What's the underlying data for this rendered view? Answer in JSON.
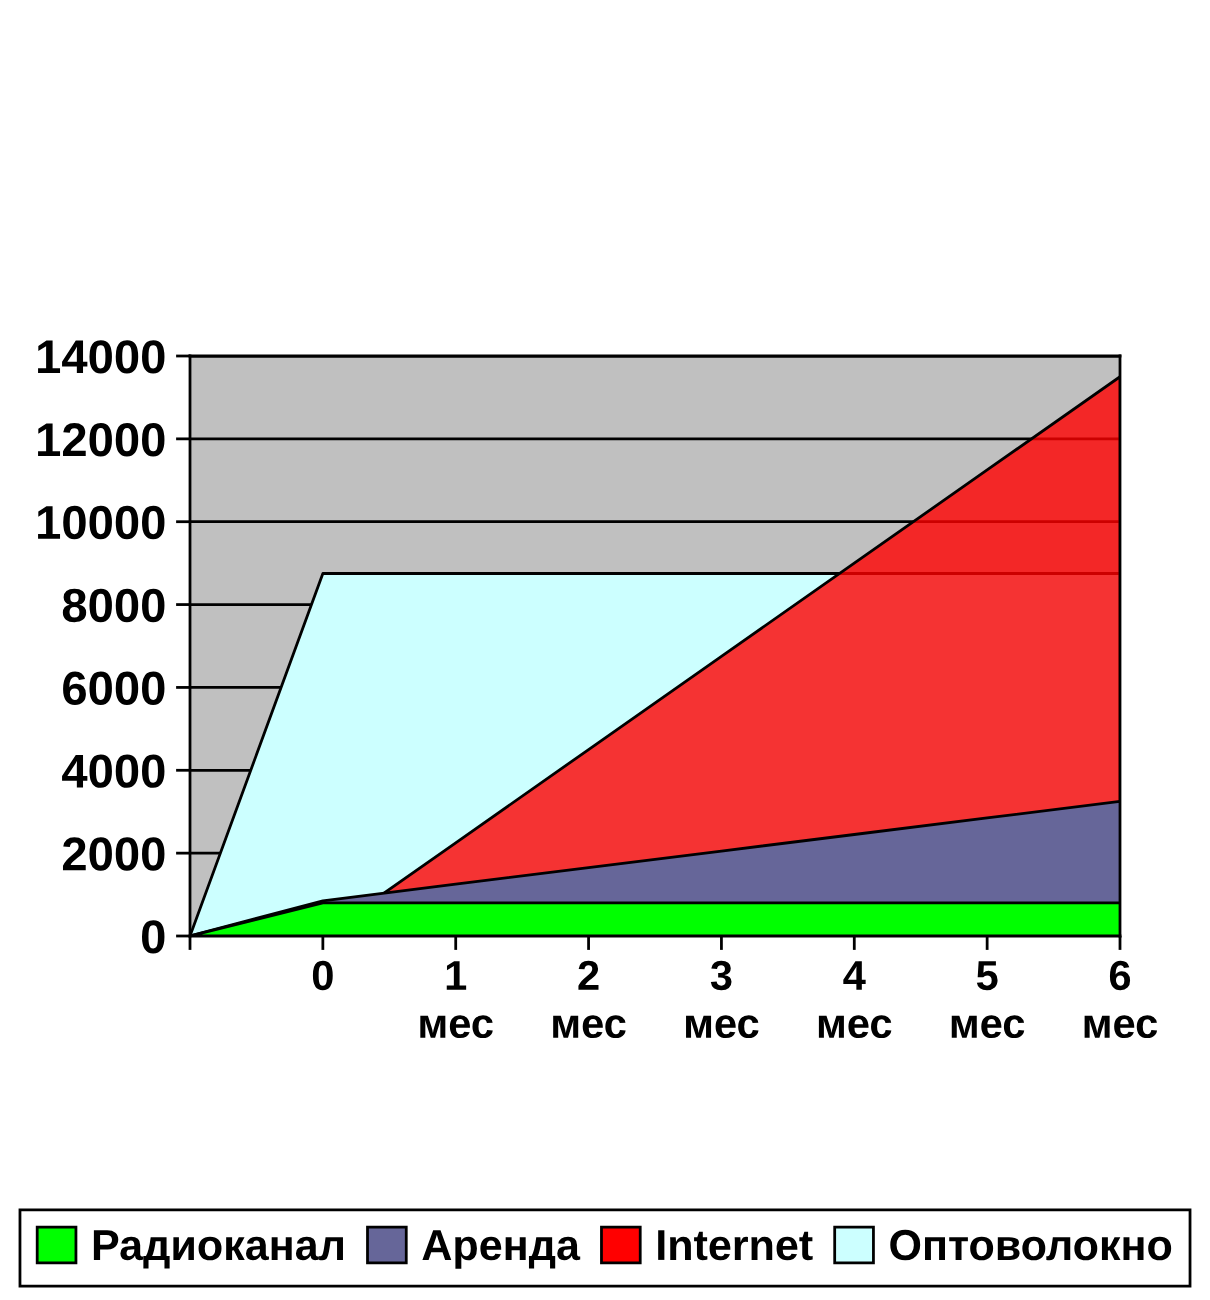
{
  "chart_data": {
    "type": "area",
    "categories": [
      null,
      "0",
      "1 мес",
      "2 мес",
      "3 мес",
      "4 мес",
      "5 мес",
      "6 мес"
    ],
    "series": [
      {
        "name": "Радиоканал",
        "color": "#00ff00",
        "values": [
          0,
          800,
          800,
          800,
          800,
          800,
          800,
          800
        ]
      },
      {
        "name": "Аренда",
        "color": "#666699",
        "values": [
          0,
          850,
          1250,
          1650,
          2050,
          2450,
          2850,
          3250
        ]
      },
      {
        "name": "Internet",
        "color": "#ff0000",
        "values": [
          0,
          0,
          2250,
          4500,
          6750,
          9000,
          11250,
          13500
        ]
      },
      {
        "name": "Оптоволокно",
        "color": "#ccffff",
        "values": [
          0,
          8750,
          8750,
          8750,
          8750,
          8750,
          8750,
          8750
        ]
      }
    ],
    "ylim": [
      0,
      14000
    ],
    "yticks": [
      0,
      2000,
      4000,
      6000,
      8000,
      10000,
      12000,
      14000
    ],
    "grid": "y",
    "legend": "bottom"
  }
}
